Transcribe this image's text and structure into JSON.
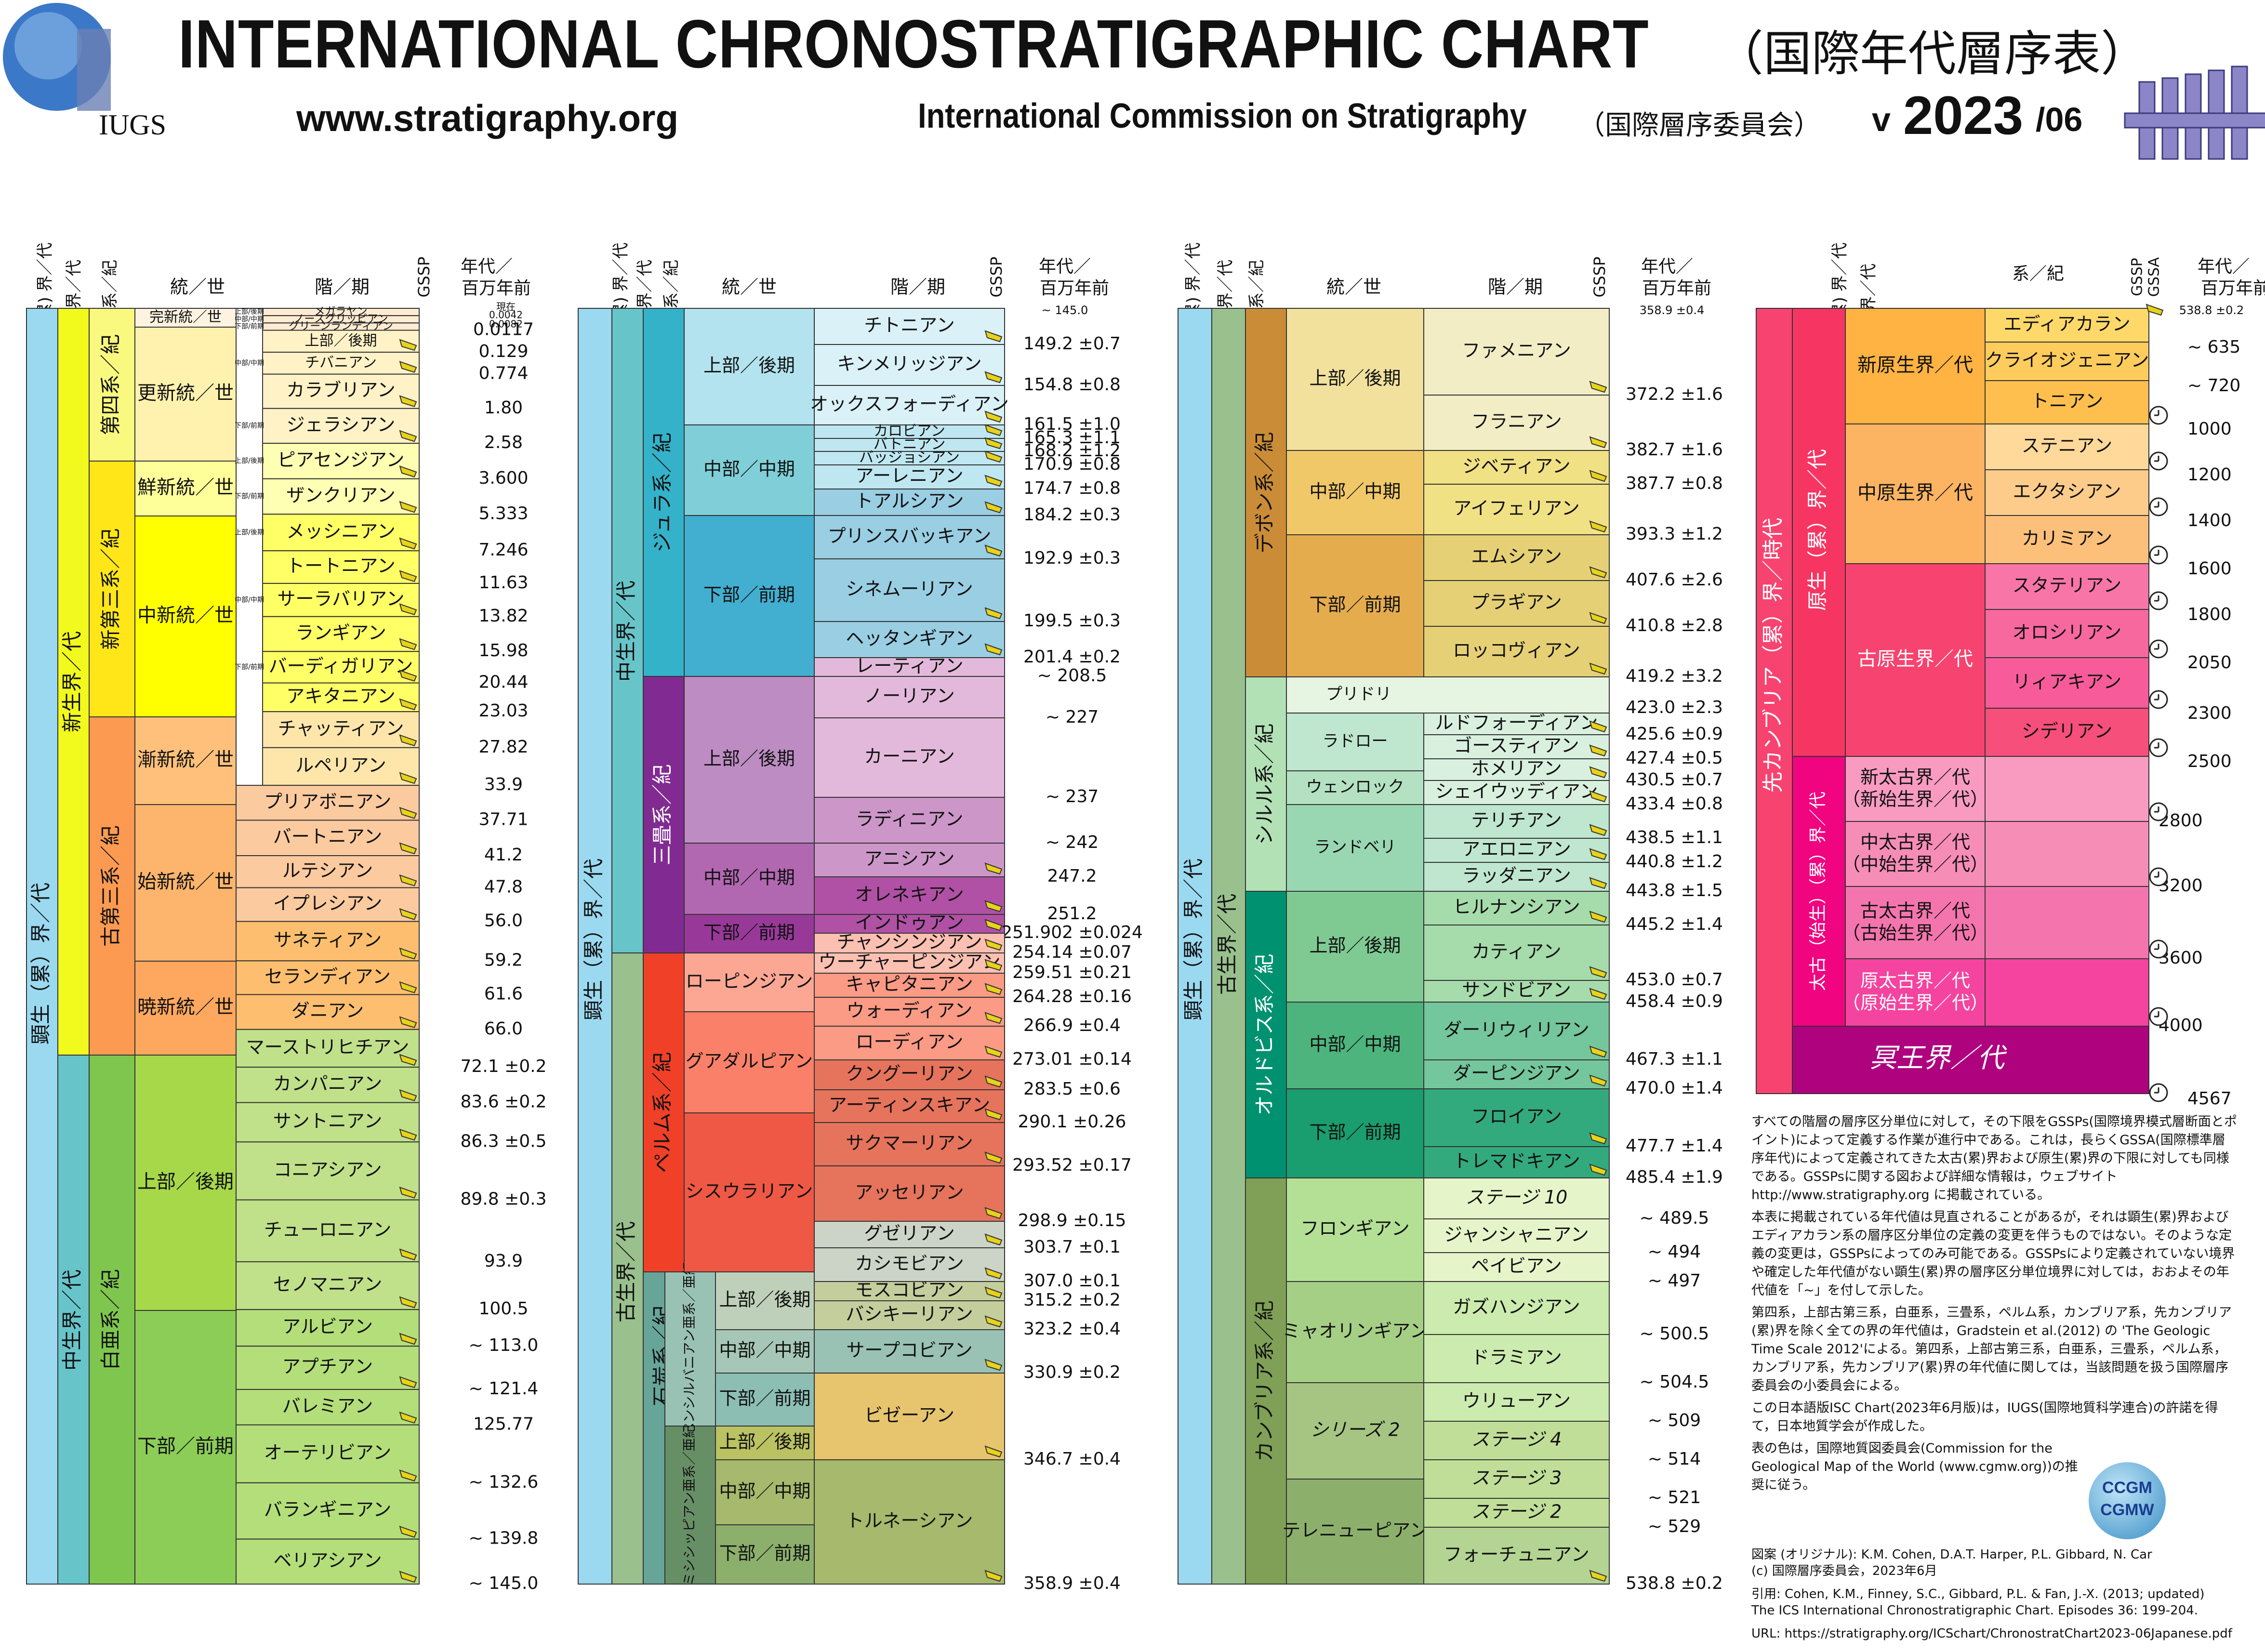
{
  "header": {
    "title": "INTERNATIONAL CHRONOSTRATIGRAPHIC CHART",
    "title_jp": "（国際年代層序表）",
    "url": "www.stratigraphy.org",
    "commission": "International Commission on Stratigraphy",
    "commission_jp": "（国際層序委員会）",
    "version_prefix": "v",
    "version_year": "2023",
    "version_month": "/06",
    "iugs": "IUGS"
  },
  "column_headers": {
    "eonothem": "(累) 界／代",
    "erathem": "界／代",
    "system": "系／紀",
    "series": "統／世",
    "stage": "階／期",
    "gssp": "GSSP",
    "gssa": "GSSA",
    "age": "年代／",
    "age2": "百万年前"
  },
  "panel1": {
    "top_age": [
      "現在",
      "0.0042",
      "0.0082"
    ],
    "eonothem": "顕生（累）界／代",
    "eras": [
      {
        "name": "新生界／代",
        "from": 0,
        "to": 66.0
      },
      {
        "name": "中生界／代",
        "from": 66.0,
        "to": 145.0
      }
    ],
    "systems": [
      {
        "name": "第四系／紀",
        "from": 0,
        "to": 2.58
      },
      {
        "name": "新第三系／紀",
        "from": 2.58,
        "to": 23.03
      },
      {
        "name": "古第三系／紀",
        "from": 23.03,
        "to": 66.0
      },
      {
        "name": "白亜系／紀",
        "from": 66.0,
        "to": 145.0
      }
    ],
    "series": [
      {
        "name": "完新統／世",
        "from": 0,
        "to": 0.0117
      },
      {
        "name": "更新統／世",
        "from": 0.0117,
        "to": 2.58
      },
      {
        "name": "鮮新統／世",
        "from": 2.58,
        "to": 5.333
      },
      {
        "name": "中新統／世",
        "from": 5.333,
        "to": 23.03
      },
      {
        "name": "漸新統／世",
        "from": 23.03,
        "to": 33.9
      },
      {
        "name": "始新統／世",
        "from": 33.9,
        "to": 56.0
      },
      {
        "name": "暁新統／世",
        "from": 56.0,
        "to": 66.0
      },
      {
        "name": "上部／後期",
        "from": 66.0,
        "to": 100.5
      },
      {
        "name": "下部／前期",
        "from": 100.5,
        "to": 145.0
      }
    ],
    "stages": [
      {
        "name": "メガラヤン",
        "sub": "上部/後期",
        "age": ""
      },
      {
        "name": "ノースグリッピアン",
        "sub": "中部/中期",
        "age": ""
      },
      {
        "name": "グリーンランディアン",
        "sub": "下部/前期",
        "age": "0.0117"
      },
      {
        "name": "上部／後期",
        "sub": "",
        "age": "0.129"
      },
      {
        "name": "チバニアン",
        "sub": "中部/中期",
        "age": "0.774"
      },
      {
        "name": "カラブリアン",
        "sub": "",
        "age": "1.80"
      },
      {
        "name": "ジェラシアン",
        "sub": "下部/前期",
        "age": "2.58"
      },
      {
        "name": "ピアセンジアン",
        "sub": "上部/後期",
        "age": "3.600"
      },
      {
        "name": "ザンクリアン",
        "sub": "下部/前期",
        "age": "5.333"
      },
      {
        "name": "メッシニアン",
        "sub": "上部/後期",
        "age": "7.246"
      },
      {
        "name": "トートニアン",
        "sub": "",
        "age": "11.63"
      },
      {
        "name": "サーラバリアン",
        "sub": "中部/中期",
        "age": "13.82"
      },
      {
        "name": "ランギアン",
        "sub": "",
        "age": "15.98"
      },
      {
        "name": "バーディガリアン",
        "sub": "下部/前期",
        "age": "20.44"
      },
      {
        "name": "アキタニアン",
        "sub": "",
        "age": "23.03"
      },
      {
        "name": "チャッティアン",
        "sub": "",
        "age": "27.82"
      },
      {
        "name": "ルペリアン",
        "sub": "",
        "age": "33.9"
      },
      {
        "name": "プリアボニアン",
        "sub": "",
        "age": "37.71"
      },
      {
        "name": "バートニアン",
        "sub": "",
        "age": "41.2"
      },
      {
        "name": "ルテシアン",
        "sub": "",
        "age": "47.8"
      },
      {
        "name": "イプレシアン",
        "sub": "",
        "age": "56.0"
      },
      {
        "name": "サネティアン",
        "sub": "",
        "age": "59.2"
      },
      {
        "name": "セランディアン",
        "sub": "",
        "age": "61.6"
      },
      {
        "name": "ダニアン",
        "sub": "",
        "age": "66.0"
      },
      {
        "name": "マーストリヒチアン",
        "sub": "",
        "age": "72.1 ±0.2"
      },
      {
        "name": "カンパニアン",
        "sub": "",
        "age": "83.6 ±0.2"
      },
      {
        "name": "サントニアン",
        "sub": "",
        "age": "86.3 ±0.5"
      },
      {
        "name": "コニアシアン",
        "sub": "",
        "age": "89.8 ±0.3"
      },
      {
        "name": "チューロニアン",
        "sub": "",
        "age": "93.9"
      },
      {
        "name": "セノマニアン",
        "sub": "",
        "age": "100.5"
      },
      {
        "name": "アルビアン",
        "sub": "",
        "age": "~ 113.0"
      },
      {
        "name": "アプチアン",
        "sub": "",
        "age": "~ 121.4"
      },
      {
        "name": "バレミアン",
        "sub": "",
        "age": "125.77"
      },
      {
        "name": "オーテリビアン",
        "sub": "",
        "age": "~ 132.6"
      },
      {
        "name": "バランギニアン",
        "sub": "",
        "age": "~ 139.8"
      },
      {
        "name": "ベリアシアン",
        "sub": "",
        "age": "~ 145.0"
      }
    ]
  },
  "panel2": {
    "top_age": "~ 145.0",
    "eonothem": "顕生（累）界／代",
    "eras": [
      {
        "name": "中生界／代"
      },
      {
        "name": "古生界／代"
      }
    ],
    "systems": [
      {
        "name": "ジュラ系／紀"
      },
      {
        "name": "三畳系／紀"
      },
      {
        "name": "ペルム系／紀"
      },
      {
        "name": "石炭系／紀"
      }
    ],
    "subsystems": [
      {
        "name": "ペンシルバニアン亜系／亜紀"
      },
      {
        "name": "ミシシッピアン亜系／亜紀"
      }
    ],
    "series": [
      "上部／後期",
      "中部／中期",
      "下部／前期",
      "上部／後期",
      "中部／中期",
      "下部／前期",
      "ローピンジアン",
      "グアダルピアン",
      "シスウラリアン",
      "上部／後期",
      "中部／中期",
      "下部／前期",
      "上部／後期",
      "中部／中期",
      "下部／前期"
    ],
    "stages": [
      {
        "name": "チトニアン",
        "age": "149.2 ±0.7"
      },
      {
        "name": "キンメリッジアン",
        "age": "154.8 ±0.8"
      },
      {
        "name": "オックスフォーディアン",
        "age": "161.5 ±1.0"
      },
      {
        "name": "カロビアン",
        "age": "165.3 ±1.1"
      },
      {
        "name": "バトニアン",
        "age": "168.2 ±1.2"
      },
      {
        "name": "バッジョシアン",
        "age": "170.9 ±0.8"
      },
      {
        "name": "アーレニアン",
        "age": "174.7 ±0.8"
      },
      {
        "name": "トアルシアン",
        "age": "184.2 ±0.3"
      },
      {
        "name": "プリンスバッキアン",
        "age": "192.9 ±0.3"
      },
      {
        "name": "シネムーリアン",
        "age": "199.5 ±0.3"
      },
      {
        "name": "ヘッタンギアン",
        "age": "201.4 ±0.2"
      },
      {
        "name": "レーティアン",
        "age": "~ 208.5"
      },
      {
        "name": "ノーリアン",
        "age": "~ 227"
      },
      {
        "name": "カーニアン",
        "age": "~ 237"
      },
      {
        "name": "ラディニアン",
        "age": "~ 242"
      },
      {
        "name": "アニシアン",
        "age": "247.2"
      },
      {
        "name": "オレネキアン",
        "age": "251.2"
      },
      {
        "name": "インドゥアン",
        "age": "251.902 ±0.024"
      },
      {
        "name": "チャンシンジアン",
        "age": "254.14 ±0.07"
      },
      {
        "name": "ウーチャーピンジアン",
        "age": "259.51 ±0.21"
      },
      {
        "name": "キャピタニアン",
        "age": "264.28 ±0.16"
      },
      {
        "name": "ウォーディアン",
        "age": "266.9 ±0.4"
      },
      {
        "name": "ローディアン",
        "age": "273.01 ±0.14"
      },
      {
        "name": "クングーリアン",
        "age": "283.5 ±0.6"
      },
      {
        "name": "アーティンスキアン",
        "age": "290.1 ±0.26"
      },
      {
        "name": "サクマーリアン",
        "age": "293.52 ±0.17"
      },
      {
        "name": "アッセリアン",
        "age": "298.9 ±0.15"
      },
      {
        "name": "グゼリアン",
        "age": "303.7 ±0.1"
      },
      {
        "name": "カシモビアン",
        "age": "307.0 ±0.1"
      },
      {
        "name": "モスコビアン",
        "age": "315.2 ±0.2"
      },
      {
        "name": "バシキーリアン",
        "age": "323.2 ±0.4"
      },
      {
        "name": "サープコビアン",
        "age": "330.9 ±0.2"
      },
      {
        "name": "ビゼーアン",
        "age": "346.7 ±0.4"
      },
      {
        "name": "トルネーシアン",
        "age": "358.9 ±0.4"
      }
    ]
  },
  "panel3": {
    "top_age": "358.9 ±0.4",
    "eonothem": "顕生（累）界／代",
    "era": "古生界／代",
    "systems": [
      {
        "name": "デボン系／紀"
      },
      {
        "name": "シルル系／紀"
      },
      {
        "name": "オルドビス系／紀"
      },
      {
        "name": "カンブリア系／紀"
      }
    ],
    "series": [
      "上部／後期",
      "中部／中期",
      "下部／前期",
      "プリドリ",
      "ラドロー",
      "ウェンロック",
      "ランドベリ",
      "上部／後期",
      "中部／中期",
      "下部／前期",
      "フロンギアン",
      "ミャオリンギアン",
      "シリーズ 2",
      "テレニューピアン"
    ],
    "stages": [
      {
        "name": "ファメニアン",
        "age": "372.2 ±1.6"
      },
      {
        "name": "フラニアン",
        "age": "382.7 ±1.6"
      },
      {
        "name": "ジベティアン",
        "age": "387.7 ±0.8"
      },
      {
        "name": "アイフェリアン",
        "age": "393.3 ±1.2"
      },
      {
        "name": "エムシアン",
        "age": "407.6 ±2.6"
      },
      {
        "name": "プラギアン",
        "age": "410.8 ±2.8"
      },
      {
        "name": "ロッコヴィアン",
        "age": "419.2 ±3.2"
      },
      {
        "name": "",
        "age": "423.0 ±2.3"
      },
      {
        "name": "ルドフォーディアン",
        "age": "425.6 ±0.9"
      },
      {
        "name": "ゴースティアン",
        "age": "427.4 ±0.5"
      },
      {
        "name": "ホメリアン",
        "age": "430.5 ±0.7"
      },
      {
        "name": "シェイウッディアン",
        "age": "433.4 ±0.8"
      },
      {
        "name": "テリチアン",
        "age": "438.5 ±1.1"
      },
      {
        "name": "アエロニアン",
        "age": "440.8 ±1.2"
      },
      {
        "name": "ラッダニアン",
        "age": "443.8 ±1.5"
      },
      {
        "name": "ヒルナンシアン",
        "age": "445.2 ±1.4"
      },
      {
        "name": "カティアン",
        "age": "453.0 ±0.7"
      },
      {
        "name": "サンドビアン",
        "age": "458.4 ±0.9"
      },
      {
        "name": "ダーリウィリアン",
        "age": "467.3 ±1.1"
      },
      {
        "name": "ダーピンジアン",
        "age": "470.0 ±1.4"
      },
      {
        "name": "フロイアン",
        "age": "477.7 ±1.4"
      },
      {
        "name": "トレマドキアン",
        "age": "485.4 ±1.9"
      },
      {
        "name": "ステージ 10",
        "age": "~ 489.5"
      },
      {
        "name": "ジャンシャニアン",
        "age": "~ 494"
      },
      {
        "name": "ペイビアン",
        "age": "~ 497"
      },
      {
        "name": "ガズハンジアン",
        "age": "~ 500.5"
      },
      {
        "name": "ドラミアン",
        "age": "~ 504.5"
      },
      {
        "name": "ウリューアン",
        "age": "~ 509"
      },
      {
        "name": "ステージ 4",
        "age": "~ 514"
      },
      {
        "name": "ステージ 3",
        "age": "~ 521"
      },
      {
        "name": "ステージ 2",
        "age": "~ 529"
      },
      {
        "name": "フォーチュニアン",
        "age": "538.8 ±0.2"
      }
    ]
  },
  "panel4": {
    "top_age": "538.8 ±0.2",
    "supereon": "先カンブリア（累）界／時代",
    "eons": [
      "原生（累）界／代",
      "太古（始生）（累）界／代",
      "冥王界／代"
    ],
    "eras": [
      "新原生界／代",
      "中原生界／代",
      "古原生界／代",
      "新太古界／代（新始生界／代）",
      "中太古界／代（中始生界／代）",
      "古太古界／代（古始生界／代）",
      "原太古界／代（原始生界／代）"
    ],
    "systems": [
      {
        "name": "エディアカラン",
        "age": "~ 635"
      },
      {
        "name": "クライオジェニアン",
        "age": "~ 720"
      },
      {
        "name": "トニアン",
        "age": "1000"
      },
      {
        "name": "ステニアン",
        "age": "1200"
      },
      {
        "name": "エクタシアン",
        "age": "1400"
      },
      {
        "name": "カリミアン",
        "age": "1600"
      },
      {
        "name": "スタテリアン",
        "age": "1800"
      },
      {
        "name": "オロシリアン",
        "age": "2050"
      },
      {
        "name": "リィアキアン",
        "age": "2300"
      },
      {
        "name": "シデリアン",
        "age": "2500"
      }
    ],
    "eon_ages": [
      "2800",
      "3200",
      "3600",
      "4000",
      "4567"
    ]
  },
  "notes": [
    "すべての階層の層序区分単位に対して，その下限をGSSPs(国際境界模式層断面とポイント)によって定義する作業が進行中である。これは，長らくGSSA(国際標準層序年代)によって定義されてきた太古(累)界および原生(累)界の下限に対しても同様である。GSSPsに関する図および詳細な情報は，ウェブサイト http://www.stratigraphy.org に掲載されている。",
    "本表に掲載されている年代値は見直されることがあるが，それは顕生(累)界およびエディアカラン系の層序区分単位の定義の変更を伴うものではない。そのような定義の変更は，GSSPsによってのみ可能である。GSSPsにより定義されていない境界や確定した年代値がない顕生(累)界の層序区分単位境界に対しては，おおよその年代値を「~」を付して示した。",
    "第四系，上部古第三系，白亜系，三畳系，ペルム系，カンブリア系，先カンブリア(累)界を除く全ての界の年代値は，Gradstein et al.(2012) の 'The Geologic Time Scale 2012'による。第四系，上部古第三系，白亜系，三畳系，ペルム系，カンブリア系，先カンブリア(累)界の年代値に関しては，当該問題を扱う国際層序委員会の小委員会による。",
    "この日本語版ISC Chart(2023年6月版)は，IUGS(国際地質科学連合)の許諾を得て，日本地質学会が作成した。",
    "表の色は，国際地質図委員会(Commission for the Geological Map of the World (www.cgmw.org))の推奨に従う。"
  ],
  "cgmw": [
    "CCGM",
    "CGMW"
  ],
  "credits": [
    "図案 (オリジナル): K.M. Cohen, D.A.T. Harper, P.L. Gibbard, N. Car",
    "(c) 国際層序委員会，2023年6月",
    "引用: Cohen, K.M., Finney, S.C., Gibbard, P.L. & Fan, J.-X. (2013; updated)",
    "The ICS International Chronostratigraphic Chart. Episodes 36: 199-204.",
    "URL: https://stratigraphy.org/ICSchart/ChronostratChart2023-06Japanese.pdf"
  ],
  "chart_data": {
    "type": "table",
    "title": "INTERNATIONAL CHRONOSTRATIGRAPHIC CHART",
    "units": "百万年前",
    "colors": {
      "phanerozoic": "#9AD9F0",
      "cenozoic": "#F2F91D",
      "mesozoic": "#67C5CA",
      "paleozoic": "#99C08D",
      "precambrian": "#F74370",
      "proterozoic": "#F73563",
      "archean": "#F0047F",
      "hadean": "#AE027E"
    }
  }
}
